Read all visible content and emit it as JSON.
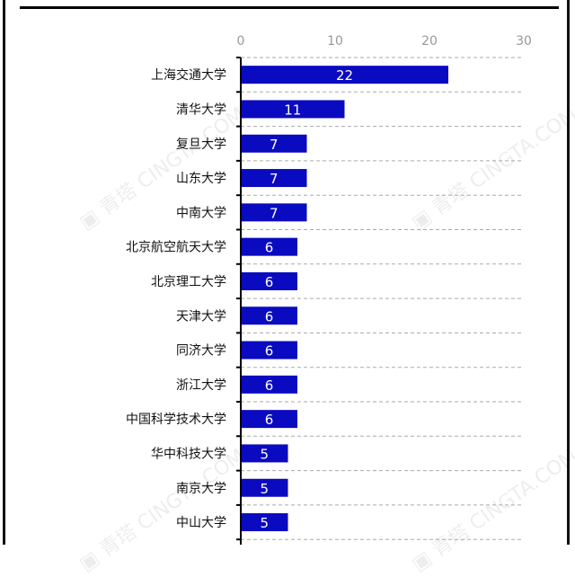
{
  "watermark": "青塔 CINGTA.COM",
  "chart_data": {
    "type": "bar",
    "orientation": "horizontal",
    "categories": [
      "上海交通大学",
      "清华大学",
      "复旦大学",
      "山东大学",
      "中南大学",
      "北京航空航天大学",
      "北京理工大学",
      "天津大学",
      "同济大学",
      "浙江大学",
      "中国科学技术大学",
      "华中科技大学",
      "南京大学",
      "中山大学"
    ],
    "values": [
      22,
      11,
      7,
      7,
      7,
      6,
      6,
      6,
      6,
      6,
      6,
      5,
      5,
      5
    ],
    "xlim": [
      0,
      30
    ],
    "xticks": [
      "0",
      "10",
      "20",
      "30"
    ],
    "grid": true,
    "bar_color": "#0a0ac0",
    "title": "",
    "xlabel": "",
    "ylabel": ""
  }
}
